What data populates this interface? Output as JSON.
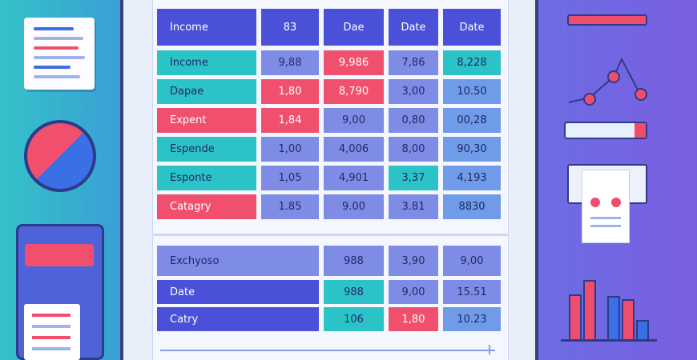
{
  "table_top": {
    "header": [
      "Income",
      "83",
      "Dae",
      "Date",
      "Date"
    ],
    "rows": [
      [
        "Income",
        "9,88",
        "9,986",
        "7,86",
        "8,228"
      ],
      [
        "Dapae",
        "1,80",
        "8,790",
        "3,00",
        "10.50"
      ],
      [
        "Expent",
        "1,84",
        "9,00",
        "0,80",
        "00,28"
      ],
      [
        "Espende",
        "1,00",
        "4,006",
        "8,00",
        "90,30"
      ],
      [
        "Esponte",
        "1,05",
        "4,901",
        "3,37",
        "4,193"
      ],
      [
        "Catagry",
        "1.85",
        "9.00",
        "3.81",
        "8830"
      ]
    ]
  },
  "table_bottom": {
    "rows": [
      [
        "Exchyoso",
        "",
        "988",
        "3,90",
        "9,00"
      ],
      [
        "Date",
        "",
        "988",
        "9,00",
        "15.51"
      ],
      [
        "Catry",
        "",
        "106",
        "1,80",
        "10.23"
      ]
    ]
  },
  "colors": {
    "blue": "#4a50d8",
    "teal": "#2cc3c8",
    "pink": "#f0506e",
    "light": "#7f8ce6",
    "sky": "#6f9be8"
  }
}
